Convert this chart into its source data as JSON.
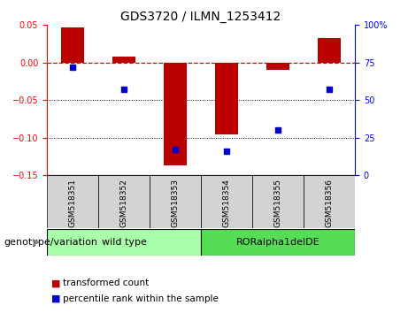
{
  "title": "GDS3720 / ILMN_1253412",
  "categories": [
    "GSM518351",
    "GSM518352",
    "GSM518353",
    "GSM518354",
    "GSM518355",
    "GSM518356"
  ],
  "bar_values": [
    0.047,
    0.008,
    -0.137,
    -0.095,
    -0.01,
    0.033
  ],
  "percentile_values": [
    72,
    57,
    17,
    16,
    30,
    57
  ],
  "ylim_left": [
    -0.15,
    0.05
  ],
  "ylim_right": [
    0,
    100
  ],
  "left_yticks": [
    -0.15,
    -0.1,
    -0.05,
    0.0,
    0.05
  ],
  "right_yticks": [
    0,
    25,
    50,
    75,
    100
  ],
  "bar_color": "#bb0000",
  "scatter_color": "#0000cc",
  "hline_color": "#cc0000",
  "dotted_line_color": "#000000",
  "groups": [
    {
      "label": "wild type",
      "start": 0,
      "end": 3,
      "color": "#aaffaa"
    },
    {
      "label": "RORalpha1delDE",
      "start": 3,
      "end": 6,
      "color": "#55dd55"
    }
  ],
  "group_row_label": "genotype/variation",
  "legend_bar_label": "transformed count",
  "legend_scatter_label": "percentile rank within the sample",
  "title_fontsize": 10,
  "tick_label_fontsize": 7,
  "legend_fontsize": 7.5,
  "group_label_fontsize": 8,
  "group_row_label_fontsize": 8,
  "bar_width": 0.45,
  "sample_label_fontsize": 6.5
}
